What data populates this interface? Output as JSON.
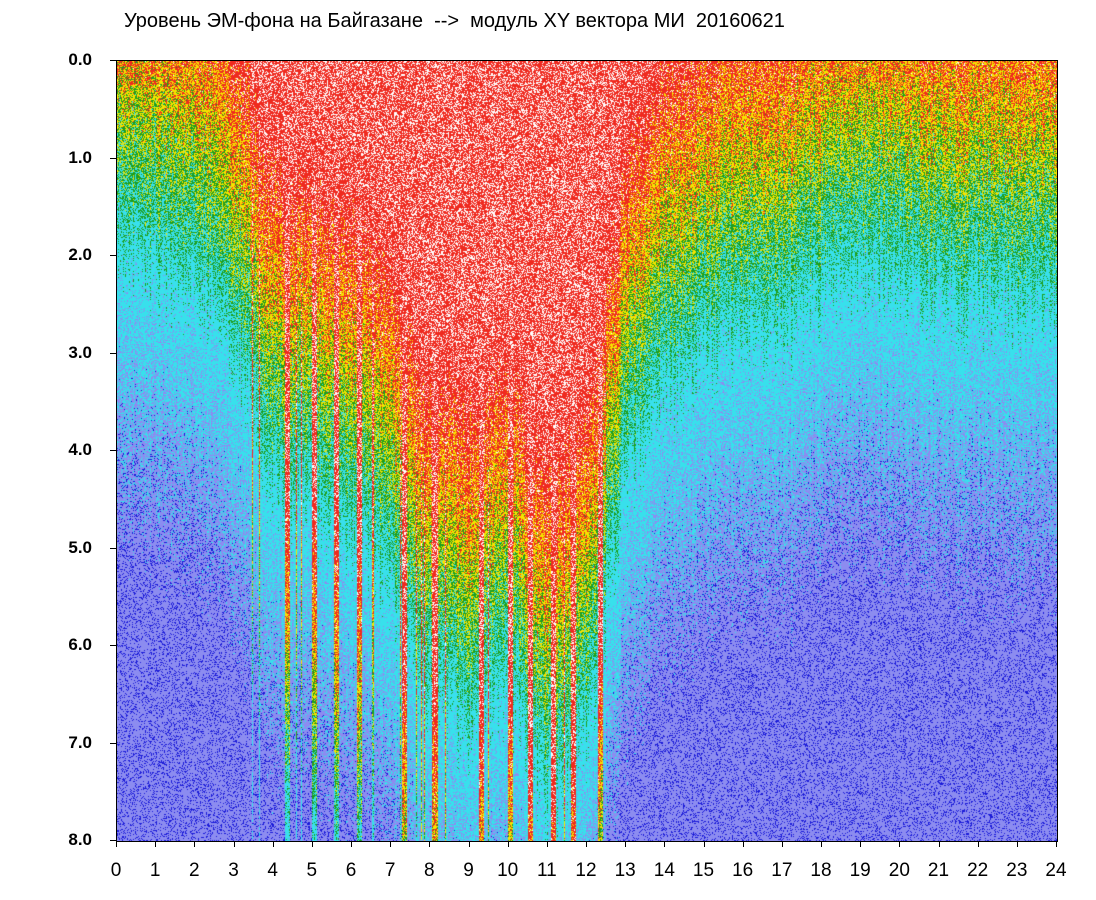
{
  "chart_data": {
    "type": "heatmap",
    "title": "Уровень ЭМ-фона на Байгазане  -->  модуль XY вектора МИ  20160621",
    "xlabel": "",
    "ylabel": "",
    "xlim": [
      0,
      24
    ],
    "ylim": [
      0.0,
      8.0
    ],
    "y_inverted": true,
    "x_ticks": [
      "0",
      "1",
      "2",
      "3",
      "4",
      "5",
      "6",
      "7",
      "8",
      "9",
      "10",
      "11",
      "12",
      "13",
      "14",
      "15",
      "16",
      "17",
      "18",
      "19",
      "20",
      "21",
      "22",
      "23",
      "24"
    ],
    "y_ticks": [
      "0.0",
      "1.0",
      "2.0",
      "3.0",
      "4.0",
      "5.0",
      "6.0",
      "7.0",
      "8.0"
    ],
    "colormap": [
      "#ffffff",
      "#ef2a1f",
      "#f6e400",
      "#1e9e1e",
      "#38e0ec",
      "#8c8cf0",
      "#1a1ad8"
    ],
    "hourly_level": [
      0.9,
      1.2,
      1.3,
      1.9,
      3.4,
      3.6,
      3.9,
      4.5,
      5.6,
      5.8,
      5.4,
      6.6,
      6.0,
      3.3,
      2.4,
      2.0,
      1.8,
      1.8,
      1.4,
      1.2,
      1.3,
      1.4,
      1.5,
      1.5,
      1.5
    ],
    "spike_hours": [
      4.35,
      5.05,
      5.6,
      6.2,
      7.35,
      8.1,
      9.3,
      10.05,
      10.55,
      11.15,
      11.65,
      12.35
    ],
    "grid": false,
    "legend": "none"
  }
}
